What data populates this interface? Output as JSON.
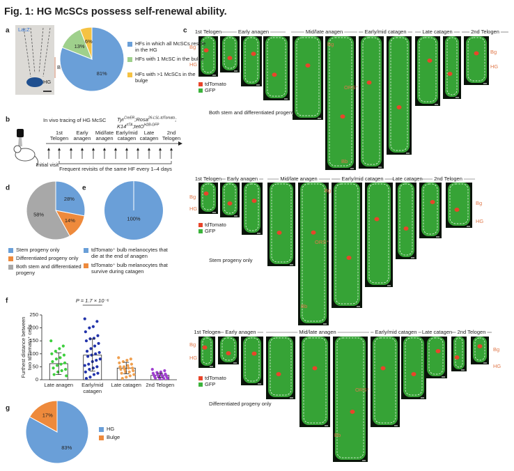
{
  "title": "Fig. 1: HG McSCs possess self-renewal ability.",
  "panel_labels": {
    "a": "a",
    "b": "b",
    "c": "c",
    "d": "d",
    "e": "e",
    "f": "f",
    "g": "g"
  },
  "panel_a": {
    "stain": "LacZ",
    "bg": "Bg",
    "hg": "HG"
  },
  "panel_b": {
    "heading": "In vivo tracing of HG McSC",
    "genotype": [
      [
        {
          "t": "Tyr"
        },
        {
          "s": "CreER"
        },
        {
          "t": ";Rosa"
        },
        {
          "s": "26-LSL-tdTomato"
        },
        {
          "t": ";"
        }
      ],
      [
        {
          "t": "K14"
        },
        {
          "s": "rtTA"
        },
        {
          "t": ";tetO"
        },
        {
          "s": "H2B-GFP"
        }
      ]
    ],
    "timeline": [
      [
        "1st",
        "Telogen"
      ],
      [
        "Early",
        "anagen"
      ],
      [
        "Mid/late",
        "anagen"
      ],
      [
        "Early/mid",
        "catagen"
      ],
      [
        "Late",
        "catagen"
      ],
      [
        "2nd",
        "Telogen"
      ]
    ],
    "initial": "Initial visit",
    "revisit": "Frequent revisits of the same HF every 1–4 days"
  },
  "chart_data": [
    {
      "type": "pie",
      "categories": [
        "HFs in which all McSCs reside in the HG",
        "HFs with 1 McSC in the bulge",
        "HFs with >1 McSCs in the bulge"
      ],
      "values": [
        81,
        13,
        6
      ],
      "value_labels": [
        "81%",
        "13%",
        "6%"
      ],
      "colors": [
        "#6a9fd8",
        "#9fd08c",
        "#f5c243"
      ]
    },
    {
      "type": "pie",
      "categories": [
        "Stem progeny only",
        "Differentiated progeny only",
        "Both stem and differentiated progeny"
      ],
      "values": [
        28,
        14,
        58
      ],
      "value_labels": [
        "28%",
        "14%",
        "58%"
      ],
      "colors": [
        "#6a9fd8",
        "#ee8a3c",
        "#a8a8a8"
      ]
    },
    {
      "type": "pie",
      "categories": [
        "tdTomato⁺ bulb melanocytes that die at the end of anagen",
        "tdTomato⁺ bulb melanocytes that survive during catagen"
      ],
      "values": [
        100,
        0
      ],
      "value_labels": [
        "100%",
        null
      ],
      "colors": [
        "#6a9fd8",
        "#ee8a3c"
      ]
    },
    {
      "type": "bar",
      "categories": [
        "Late anagen",
        "Early/mid catagen",
        "Late catagen",
        "2nd Telogen"
      ],
      "values": [
        62,
        95,
        45,
        17
      ],
      "errors": [
        42,
        62,
        22,
        8
      ],
      "points": [
        [
          150,
          130,
          120,
          110,
          100,
          95,
          85,
          80,
          70,
          65,
          60,
          55,
          45,
          40,
          35,
          30,
          20,
          15
        ],
        [
          235,
          225,
          205,
          200,
          185,
          170,
          160,
          158,
          150,
          140,
          130,
          120,
          110,
          105,
          100,
          95,
          90,
          80,
          75,
          70,
          60,
          55,
          50,
          45,
          40,
          30,
          25,
          20,
          10,
          5
        ],
        [
          85,
          80,
          75,
          70,
          65,
          60,
          55,
          50,
          50,
          45,
          45,
          40,
          40,
          35,
          30,
          30,
          25,
          20,
          15,
          10,
          5
        ],
        [
          40,
          35,
          30,
          28,
          25,
          22,
          20,
          20,
          18,
          16,
          15,
          14,
          12,
          10,
          10,
          8,
          6,
          5,
          4,
          3
        ]
      ],
      "colors": [
        "#3ecf3e",
        "#2233aa",
        "#f0a050",
        "#a040d0"
      ],
      "ylim": [
        0,
        250
      ],
      "yticks": [
        0,
        50,
        100,
        150,
        200,
        250
      ],
      "y_label": [
        "Furthest distance between",
        "two tdTomato⁺ cells"
      ],
      "annotation": "P = 1.7 × 10⁻⁶"
    },
    {
      "type": "pie",
      "categories": [
        "HG",
        "Bulge"
      ],
      "values": [
        83,
        17
      ],
      "value_labels": [
        "83%",
        "17%"
      ],
      "colors": [
        "#6a9fd8",
        "#ee8a3c"
      ]
    }
  ],
  "panel_c": {
    "stages": [
      "1st Telogen",
      "Early anagen",
      "Mid/late anagen",
      "Early/mid catagen",
      "Late catagen",
      "2nd Telogen"
    ],
    "legend": [
      "tdTomato",
      "GFP"
    ],
    "markers": {
      "bg": "Bg",
      "hg": "HG",
      "ors": "ORS⁺",
      "bb": "Bb"
    },
    "rows": [
      "Both stem and differentiated progeny",
      "Stem progeny only",
      "Differentiated progeny only"
    ]
  }
}
